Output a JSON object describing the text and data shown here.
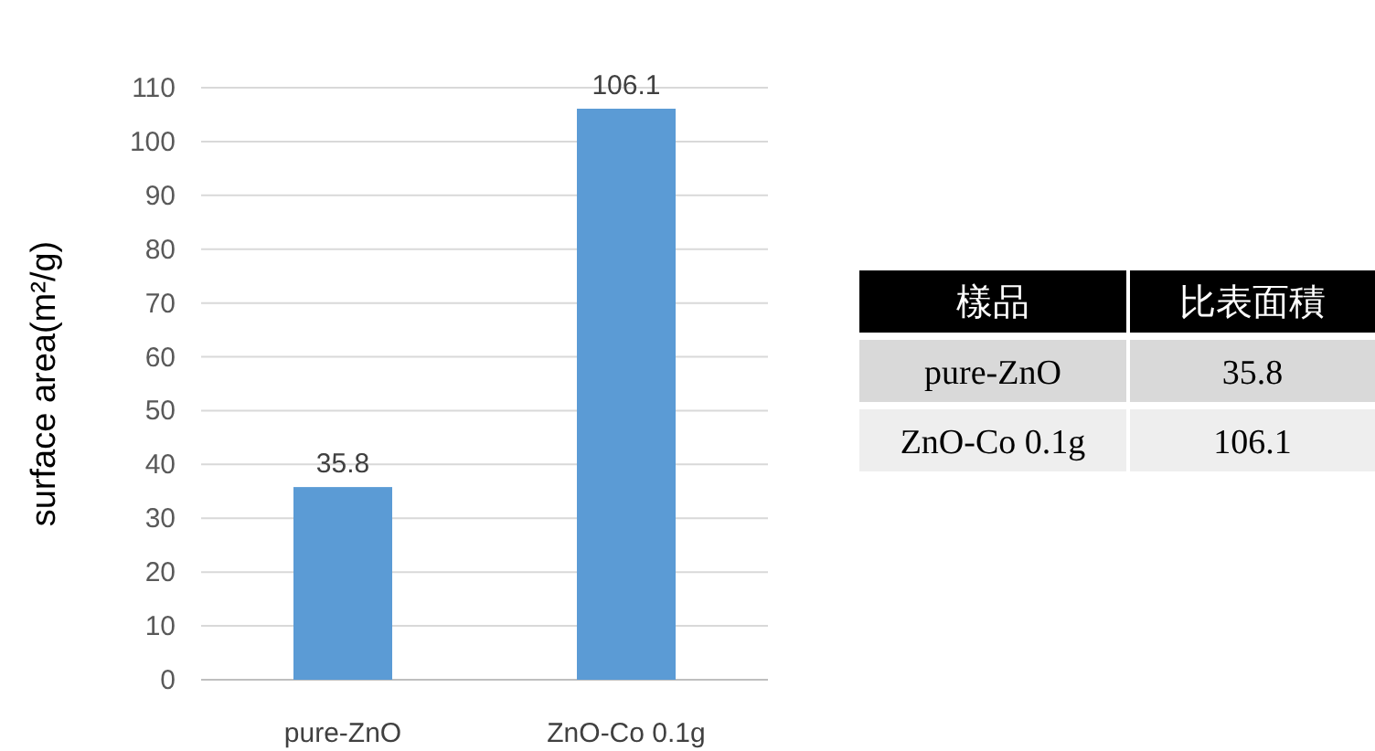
{
  "chart_data": [
    {
      "type": "bar",
      "ylabel": "surface area(m²/g)",
      "categories": [
        "pure-ZnO",
        "ZnO-Co 0.1g"
      ],
      "values": [
        35.8,
        106.1
      ],
      "color": "#5b9bd5",
      "ylim": [
        0,
        110
      ],
      "yticks": [
        0,
        10,
        20,
        30,
        40,
        50,
        60,
        70,
        80,
        90,
        100,
        110
      ],
      "grid": "y",
      "data_labels": true
    },
    {
      "type": "other",
      "annotations": [
        "樣品",
        "比表面積",
        "pure-ZnO",
        "35.8",
        "ZnO-Co 0.1g",
        "106.1"
      ]
    }
  ]
}
